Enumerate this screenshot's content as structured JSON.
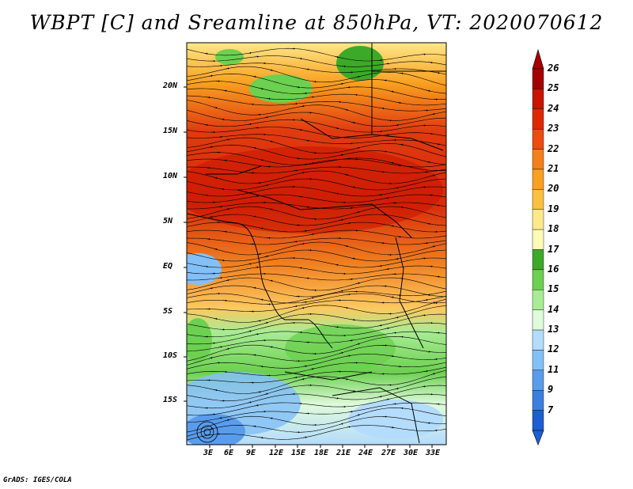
{
  "title": "WBPT [C] and Sreamline at 850hPa, VT: 2020070612",
  "credit": "GrADS: IGES/COLA",
  "map": {
    "lat_labels": [
      "20N",
      "15N",
      "10N",
      "5N",
      "EQ",
      "5S",
      "10S",
      "15S"
    ],
    "lon_labels": [
      "3E",
      "6E",
      "9E",
      "12E",
      "15E",
      "18E",
      "21E",
      "24E",
      "27E",
      "30E",
      "33E"
    ]
  },
  "colorbar": {
    "labels": [
      "26",
      "25",
      "24",
      "23",
      "22",
      "21",
      "20",
      "19",
      "18",
      "17",
      "16",
      "15",
      "14",
      "13",
      "12",
      "11",
      "9",
      "7"
    ],
    "colors": [
      "#a50000",
      "#c81400",
      "#e02800",
      "#f04a10",
      "#f5801a",
      "#f9a020",
      "#fcc040",
      "#fde88a",
      "#fffab8",
      "#3caa28",
      "#6cd050",
      "#a8ec94",
      "#e0fadc",
      "#b4dcfc",
      "#84c0f8",
      "#5a9cec",
      "#3a7ee0",
      "#1c5ed4"
    ]
  },
  "colors": {
    "warm": "#e03010",
    "cool": "#60c040"
  }
}
